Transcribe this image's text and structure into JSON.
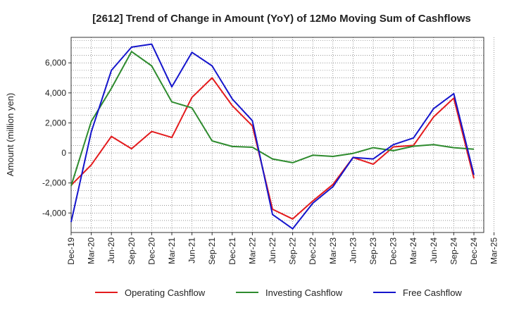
{
  "chart_data": {
    "type": "line",
    "title": "[2612]  Trend of Change in Amount (YoY) of 12Mo Moving Sum of Cashflows",
    "xlabel": "",
    "ylabel": "Amount (million yen)",
    "ylim": [
      -5300,
      7700
    ],
    "yticks": [
      -4000,
      -2000,
      0,
      2000,
      4000,
      6000
    ],
    "ytick_labels": [
      "-4,000",
      "-2,000",
      "0",
      "2,000",
      "4,000",
      "6,000"
    ],
    "categories": [
      "Dec-19",
      "Mar-20",
      "Jun-20",
      "Sep-20",
      "Dec-20",
      "Mar-21",
      "Jun-21",
      "Sep-21",
      "Dec-21",
      "Mar-22",
      "Jun-22",
      "Sep-22",
      "Dec-22",
      "Mar-23",
      "Jun-23",
      "Sep-23",
      "Dec-23",
      "Mar-24",
      "Jun-24",
      "Sep-24",
      "Dec-24",
      "Mar-25"
    ],
    "grid": true,
    "legend_position": "bottom",
    "series": [
      {
        "name": "Operating Cashflow",
        "color": "#e31a1c",
        "values": [
          -2150,
          -800,
          1100,
          280,
          1430,
          1030,
          3700,
          5000,
          3150,
          1800,
          -3750,
          -4400,
          -3200,
          -2100,
          -300,
          -750,
          400,
          500,
          2400,
          3650,
          -1700,
          null
        ]
      },
      {
        "name": "Investing Cashflow",
        "color": "#2e8b2e",
        "values": [
          -2200,
          2100,
          4300,
          6750,
          5800,
          3400,
          3000,
          800,
          430,
          380,
          -400,
          -650,
          -150,
          -230,
          -30,
          350,
          150,
          450,
          550,
          350,
          250,
          null
        ]
      },
      {
        "name": "Free Cashflow",
        "color": "#1515cc",
        "values": [
          -4600,
          1400,
          5500,
          7050,
          7250,
          4400,
          6700,
          5800,
          3600,
          2150,
          -4100,
          -5050,
          -3350,
          -2250,
          -300,
          -400,
          550,
          1000,
          2950,
          3950,
          -1450,
          null
        ]
      }
    ]
  }
}
